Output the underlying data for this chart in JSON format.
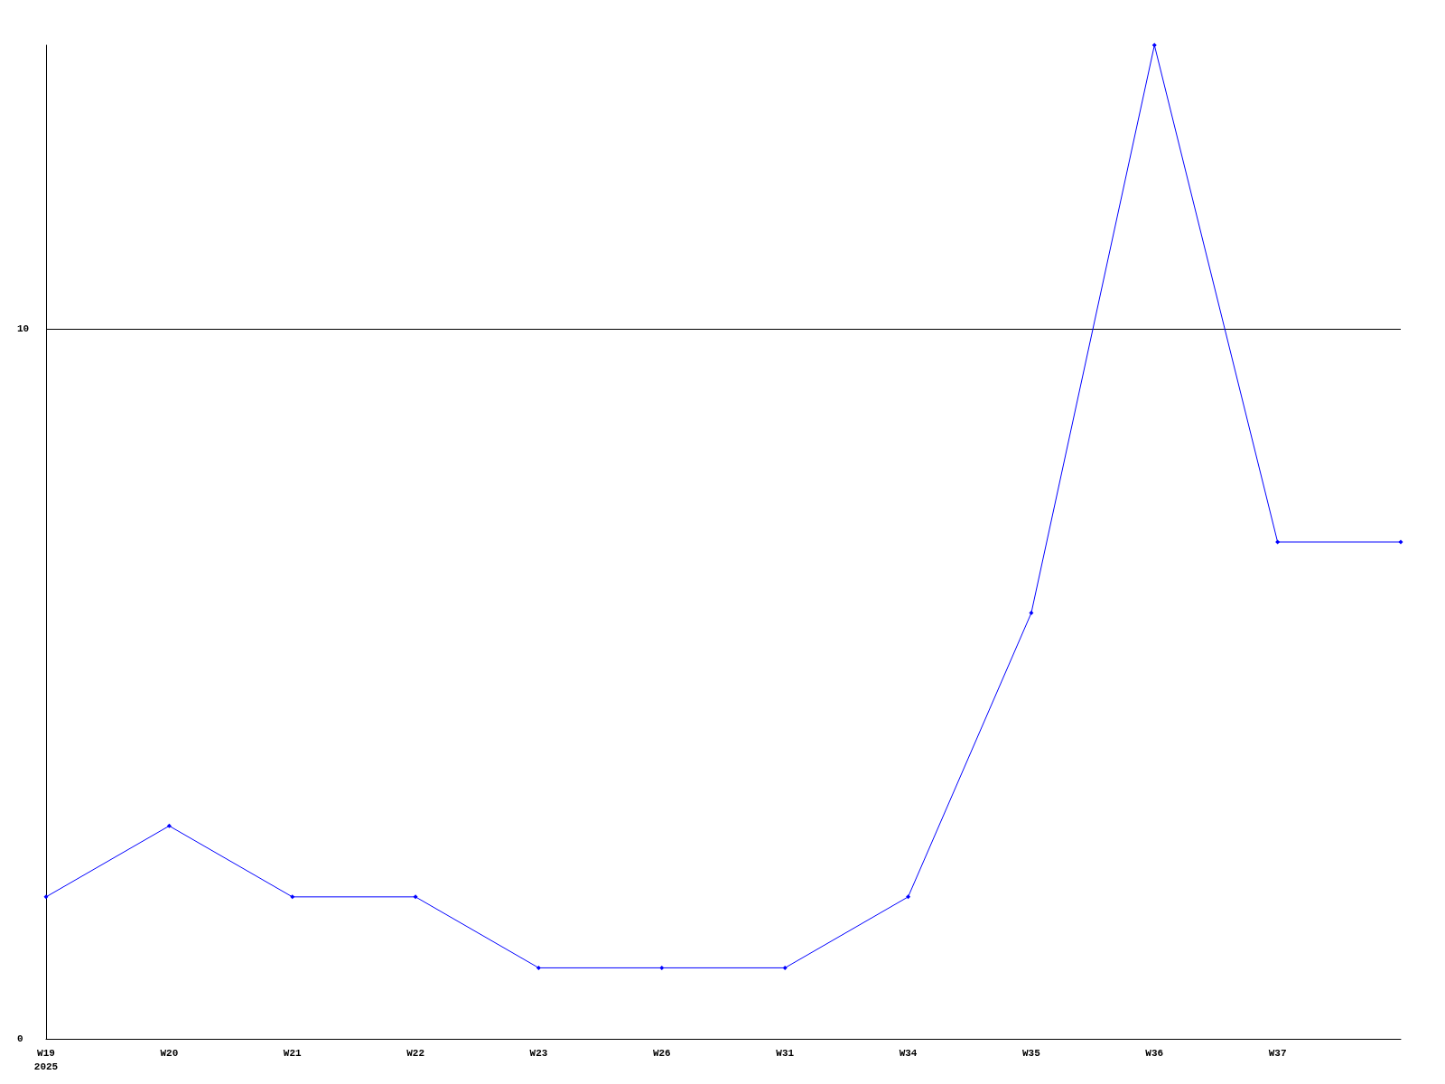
{
  "chart_data": {
    "type": "line",
    "categories": [
      "W19\n2025",
      "W20",
      "W21",
      "W22",
      "W23",
      "W26",
      "W31",
      "W34",
      "W35",
      "W36",
      "W37",
      null
    ],
    "values": [
      2,
      3,
      2,
      2,
      1,
      1,
      1,
      2,
      6,
      14,
      7,
      7
    ],
    "color": "#0000ff",
    "ylim": [
      0,
      14
    ],
    "yticks": [
      0,
      10
    ],
    "grid": "y",
    "marker": "diamond",
    "line_style": "solid"
  }
}
